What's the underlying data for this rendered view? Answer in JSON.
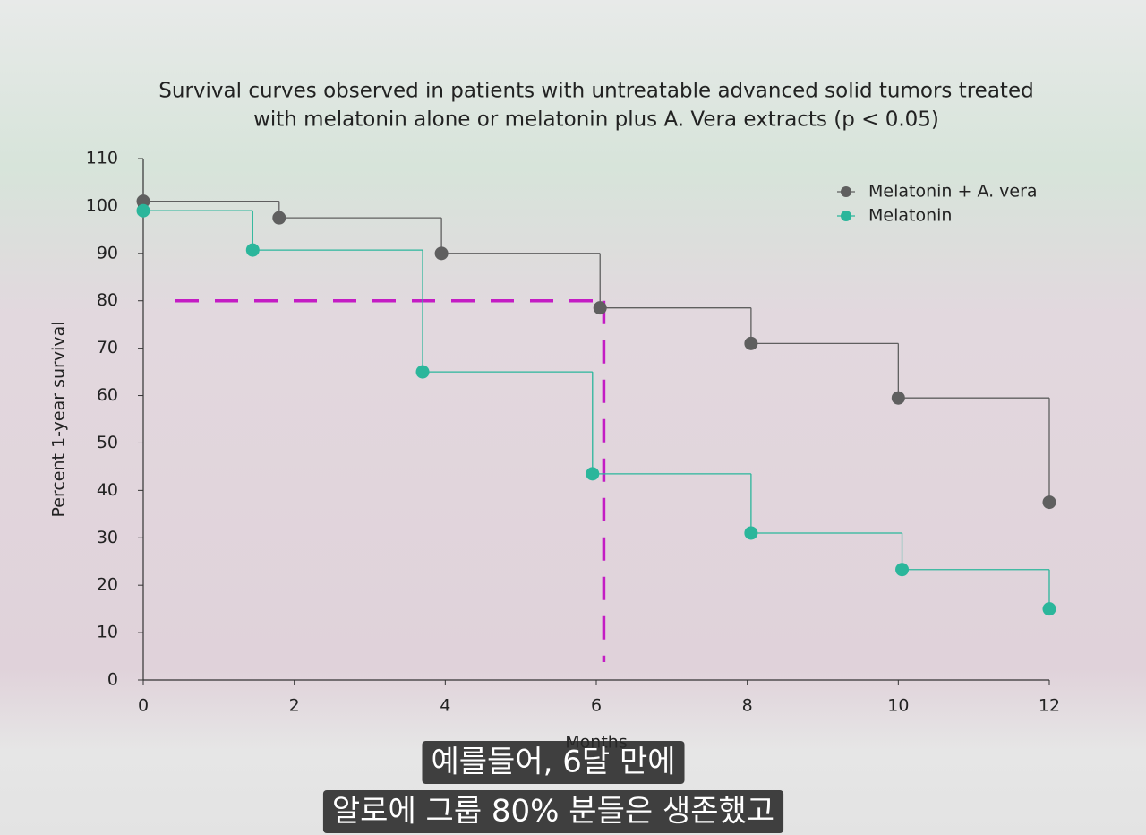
{
  "chart_data": {
    "type": "line",
    "step": "post",
    "title": [
      "Survival curves observed in patients with untreatable advanced solid tumors treated",
      "with melatonin alone or melatonin plus A. Vera extracts (p < 0.05)"
    ],
    "xlabel": "Months",
    "ylabel": "Percent 1-year survival",
    "xlim": [
      0,
      12
    ],
    "xticks": [
      0,
      2,
      4,
      6,
      8,
      10,
      12
    ],
    "ylim": [
      0,
      110
    ],
    "yticks": [
      0,
      10,
      20,
      30,
      40,
      50,
      60,
      70,
      80,
      90,
      100,
      110
    ],
    "legend": "upper right",
    "series": [
      {
        "name": "Melatonin + A. vera",
        "color": "#5f5f5f",
        "x": [
          0,
          1.8,
          3.95,
          6.05,
          8.05,
          10,
          12
        ],
        "values": [
          101,
          97.5,
          90,
          78.5,
          71,
          59.5,
          37.5
        ]
      },
      {
        "name": "Melatonin",
        "color": "#2bb69b",
        "x": [
          0,
          1.45,
          3.7,
          5.95,
          8.05,
          10.05,
          12
        ],
        "values": [
          99,
          90.7,
          65,
          43.5,
          31,
          23.3,
          15
        ]
      }
    ],
    "reference": {
      "y": 80,
      "x": 6.1,
      "color": "#c41cc4"
    }
  },
  "subtitles": [
    "예를들어, 6달 만에",
    "알로에 그룹 80% 분들은 생존했고"
  ]
}
